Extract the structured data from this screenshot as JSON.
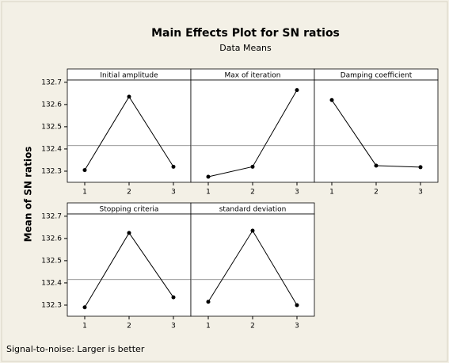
{
  "title": "Main Effects Plot for SN ratios",
  "subtitle": "Data Means",
  "ylabel": "Mean of SN ratios",
  "footnote": "Signal-to-noise: Larger is better",
  "ylim": [
    132.25,
    132.71
  ],
  "yticks": [
    132.3,
    132.4,
    132.5,
    132.6,
    132.7
  ],
  "reference_line": 132.415,
  "chart_data": [
    {
      "type": "line",
      "title": "Initial amplitude",
      "categories": [
        "1",
        "2",
        "3"
      ],
      "values": [
        132.305,
        132.635,
        132.32
      ],
      "color": "#000000"
    },
    {
      "type": "line",
      "title": "Max of iteration",
      "categories": [
        "1",
        "2",
        "3"
      ],
      "values": [
        132.275,
        132.32,
        132.665
      ],
      "color": "#000000"
    },
    {
      "type": "line",
      "title": "Damping coefficient",
      "categories": [
        "1",
        "2",
        "3"
      ],
      "values": [
        132.62,
        132.325,
        132.318
      ],
      "color": "#000000"
    },
    {
      "type": "line",
      "title": "Stopping criteria",
      "categories": [
        "1",
        "2",
        "3"
      ],
      "values": [
        132.29,
        132.625,
        132.335
      ],
      "color": "#000000"
    },
    {
      "type": "line",
      "title": "standard deviation",
      "categories": [
        "1",
        "2",
        "3"
      ],
      "values": [
        132.315,
        132.635,
        132.3
      ],
      "color": "#000000"
    }
  ]
}
